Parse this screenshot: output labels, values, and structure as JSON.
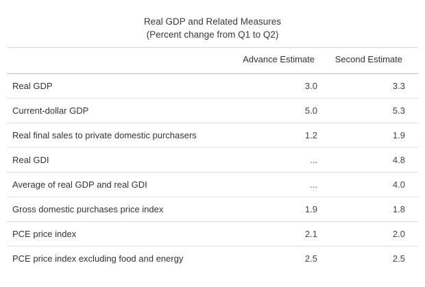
{
  "table": {
    "title_line1": "Real GDP and Related Measures",
    "title_line2": "(Percent change from Q1 to Q2)",
    "columns": [
      "Advance Estimate",
      "Second Estimate"
    ],
    "rows": [
      {
        "label": "Real GDP",
        "advance": "3.0",
        "second": "3.3"
      },
      {
        "label": "Current-dollar GDP",
        "advance": "5.0",
        "second": "5.3"
      },
      {
        "label": "Real final sales to private domestic purchasers",
        "advance": "1.2",
        "second": "1.9"
      },
      {
        "label": "Real GDI",
        "advance": "...",
        "second": "4.8"
      },
      {
        "label": "Average of real GDP and real GDI",
        "advance": "...",
        "second": "4.0"
      },
      {
        "label": "Gross domestic purchases price index",
        "advance": "1.9",
        "second": "1.8"
      },
      {
        "label": "PCE price index",
        "advance": "2.1",
        "second": "2.0"
      },
      {
        "label": "PCE price index excluding food and energy",
        "advance": "2.5",
        "second": "2.5"
      }
    ]
  }
}
